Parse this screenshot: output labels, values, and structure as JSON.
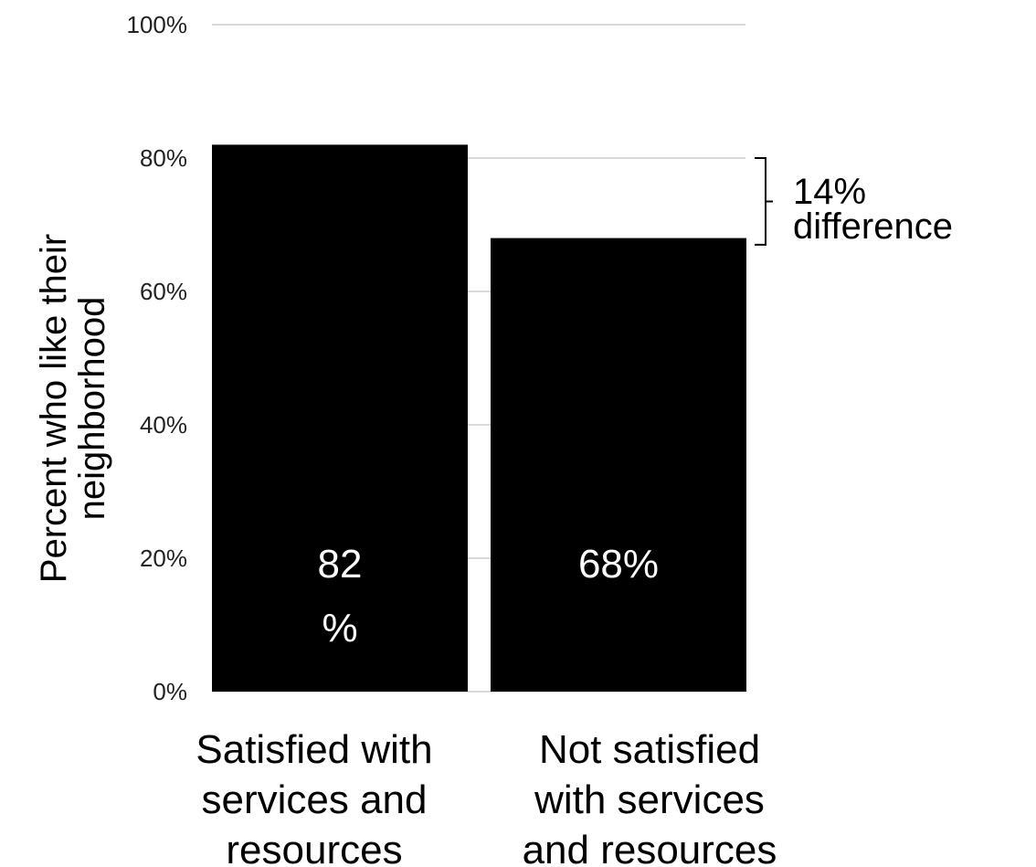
{
  "chart_data": {
    "type": "bar",
    "ylabel_lines": [
      "Percent who like their",
      "neighborhood"
    ],
    "ylim": [
      0,
      100
    ],
    "yticks": [
      {
        "value": 0,
        "label": "0%"
      },
      {
        "value": 20,
        "label": "20%"
      },
      {
        "value": 40,
        "label": "40%"
      },
      {
        "value": 60,
        "label": "60%"
      },
      {
        "value": 80,
        "label": "80%"
      },
      {
        "value": 100,
        "label": "100%"
      }
    ],
    "grid": true,
    "categories": [
      {
        "lines": [
          "Satisfied with",
          "services and",
          "resources"
        ]
      },
      {
        "lines": [
          "Not satisfied",
          "with services",
          "and resources"
        ]
      }
    ],
    "values": [
      82,
      68
    ],
    "data_labels": [
      {
        "lines": [
          "82",
          "%"
        ]
      },
      {
        "lines": [
          "68%"
        ]
      }
    ],
    "bar_color": "#000000",
    "data_label_color": "#ffffff",
    "annotation": {
      "lines": [
        "14%",
        "difference"
      ],
      "from_value": 80,
      "to_value": 67
    }
  }
}
